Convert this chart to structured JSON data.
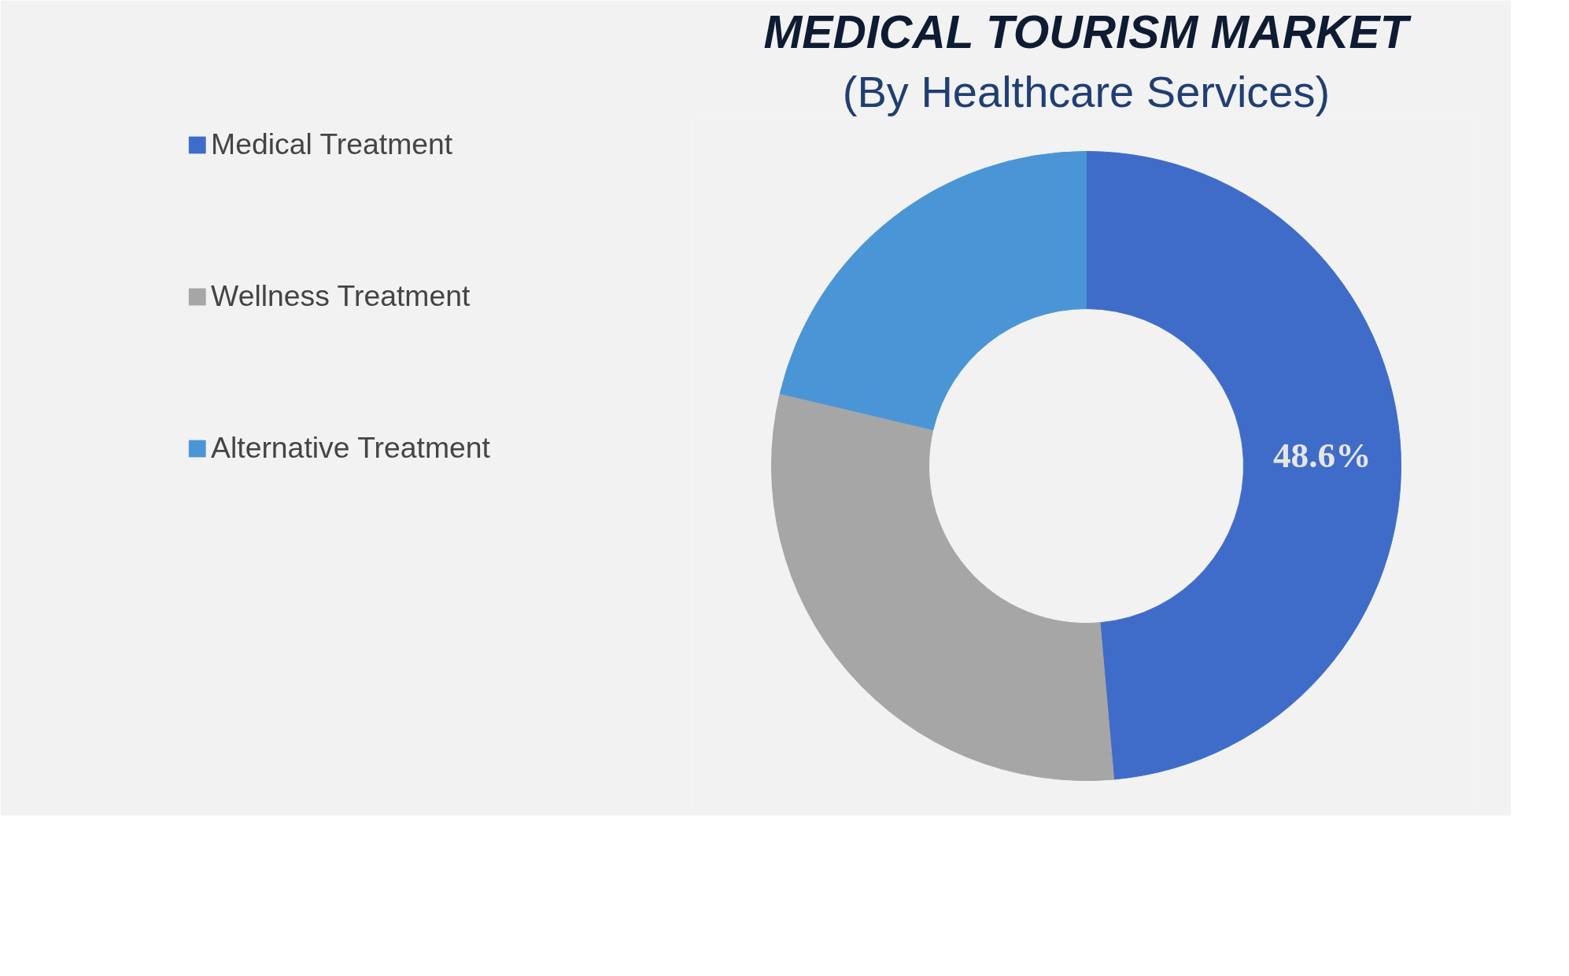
{
  "chart_data": {
    "type": "donut",
    "title": "MEDICAL TOURISM MARKET",
    "subtitle": "(By Healthcare Services)",
    "categories": [
      "Medical Treatment",
      "Wellness Treatment",
      "Alternative Treatment"
    ],
    "values": [
      48.6,
      30.1,
      21.3
    ],
    "colors": [
      "#3f6cc8",
      "#a6a6a6",
      "#4a95d6"
    ],
    "value_labels": [
      "48.6%",
      null,
      null
    ],
    "legend": "left"
  }
}
